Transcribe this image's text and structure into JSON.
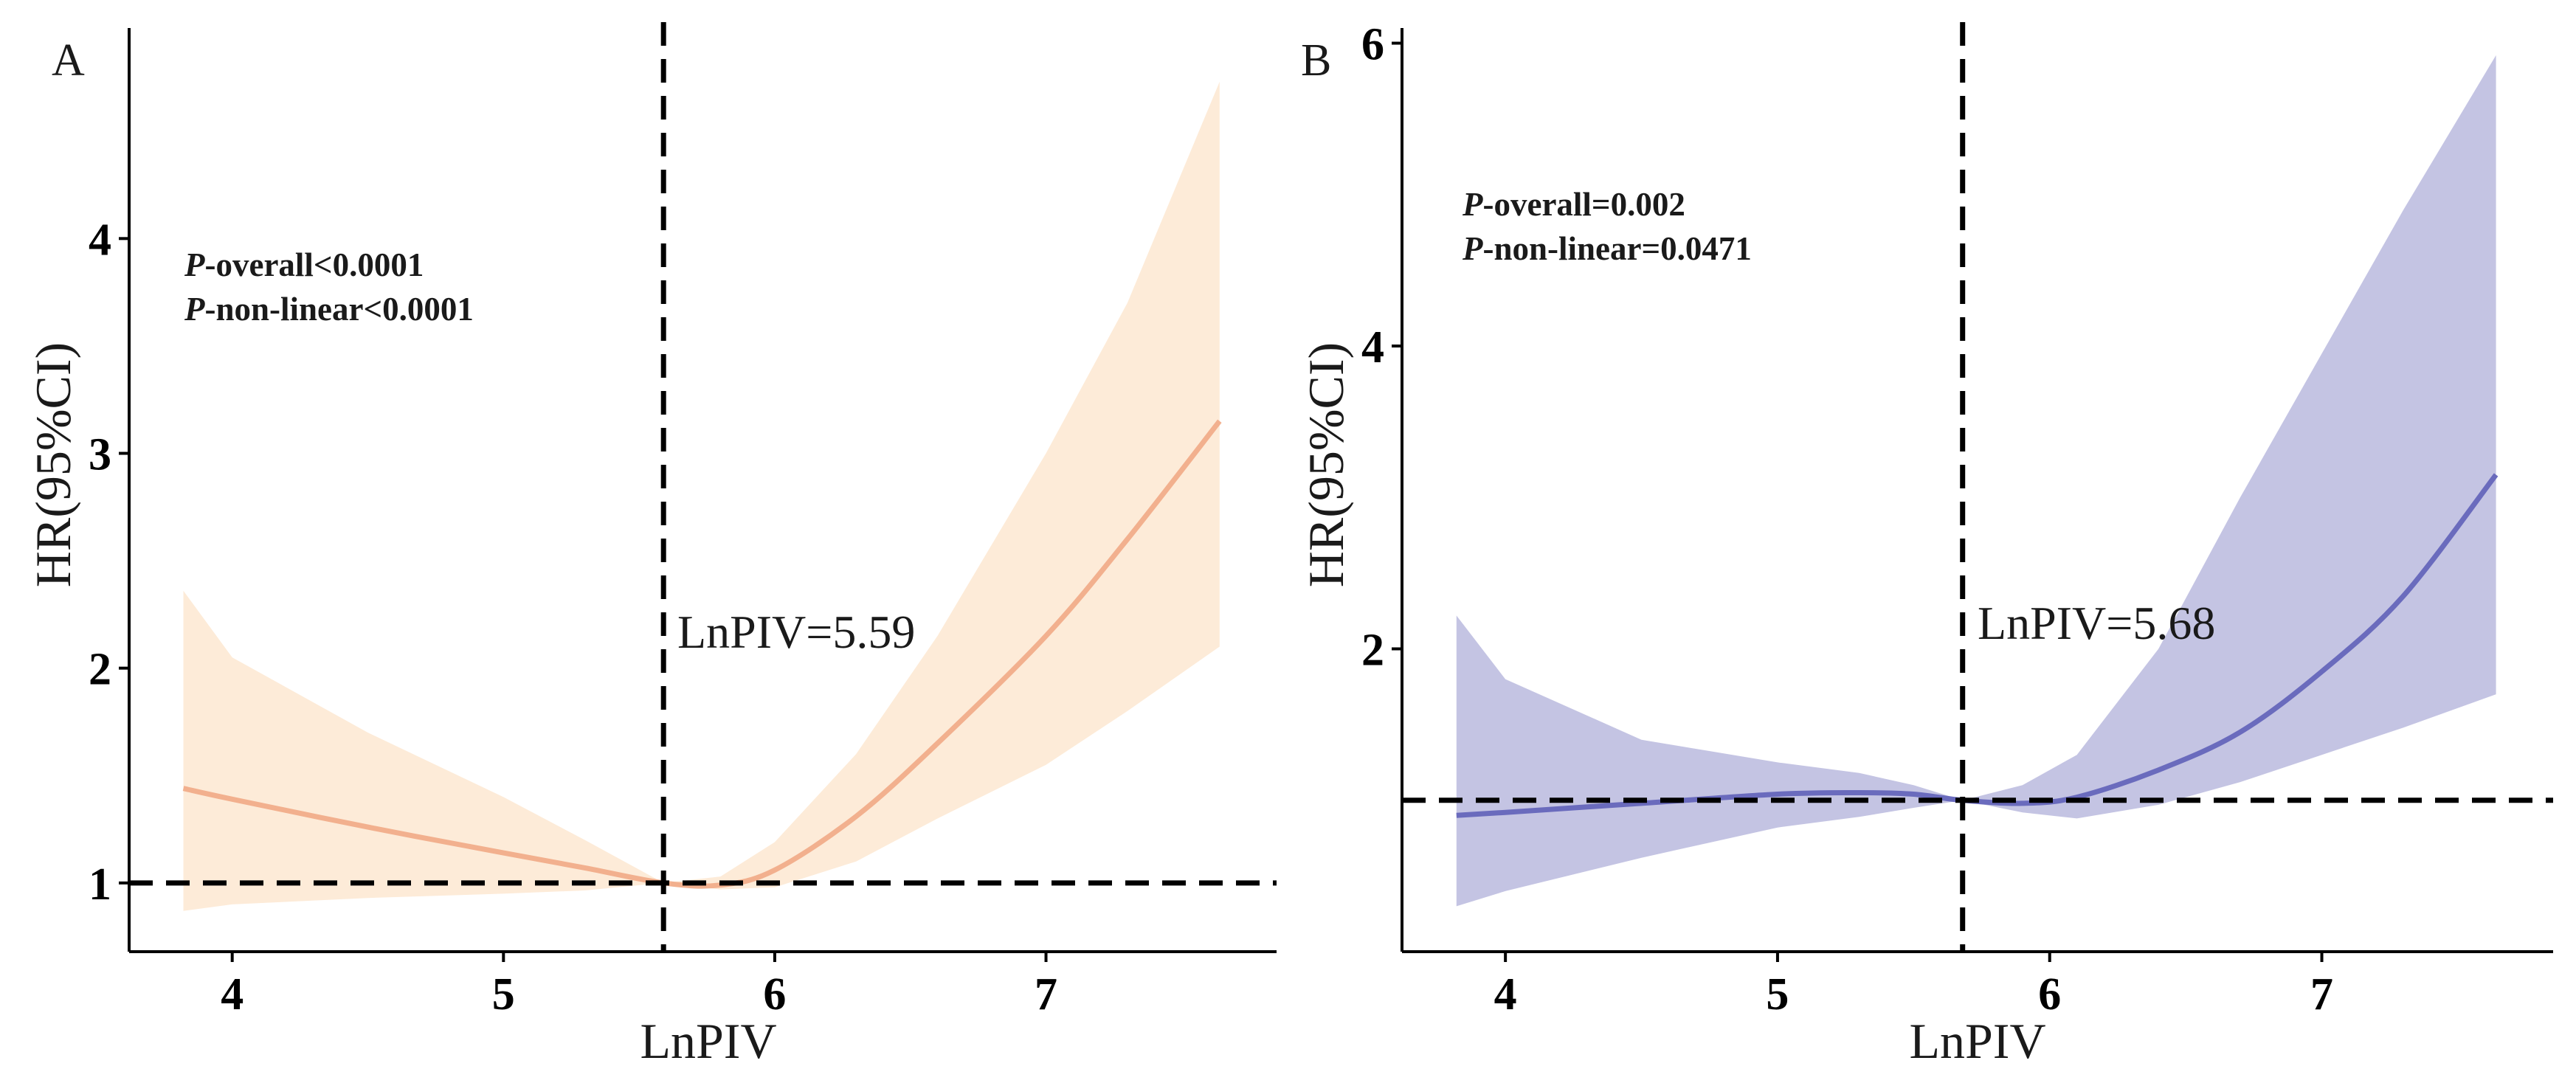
{
  "chart_data": [
    {
      "type": "line",
      "panel_label": "A",
      "xlabel": "LnPIV",
      "ylabel": "HR(95%CI)",
      "xlim": [
        3.62,
        7.85
      ],
      "ylim": [
        0.68,
        4.98
      ],
      "xticks": [
        4,
        5,
        6,
        7
      ],
      "yticks": [
        1,
        2,
        3,
        4
      ],
      "grid": false,
      "stats": [
        {
          "italic": "P",
          "text": "-overall<0.0001"
        },
        {
          "italic": "P",
          "text": "-non-linear<0.0001"
        }
      ],
      "ref_x": 5.59,
      "ref_y": 1,
      "ref_label": "LnPIV=5.59",
      "line_color": "#f2b08e",
      "band_color": "#fdebd8",
      "series": [
        {
          "name": "HR",
          "x": [
            3.82,
            4.0,
            4.5,
            5.0,
            5.3,
            5.59,
            5.8,
            6.0,
            6.3,
            6.6,
            7.0,
            7.3,
            7.64
          ],
          "y": [
            1.44,
            1.39,
            1.26,
            1.14,
            1.07,
            1.0,
            0.99,
            1.06,
            1.31,
            1.65,
            2.15,
            2.6,
            3.15
          ],
          "lower": [
            0.87,
            0.9,
            0.93,
            0.95,
            0.965,
            1.0,
            0.97,
            0.98,
            1.1,
            1.3,
            1.55,
            1.8,
            2.1
          ],
          "upper": [
            2.36,
            2.05,
            1.7,
            1.4,
            1.2,
            1.0,
            1.03,
            1.19,
            1.6,
            2.15,
            3.0,
            3.7,
            4.73
          ]
        }
      ]
    },
    {
      "type": "line",
      "panel_label": "B",
      "xlabel": "LnPIV",
      "ylabel": "HR(95%CI)",
      "xlim": [
        3.62,
        7.85
      ],
      "ylim": [
        0.0,
        6.1
      ],
      "xticks": [
        4,
        5,
        6,
        7
      ],
      "yticks": [
        2,
        4,
        6
      ],
      "grid": false,
      "stats": [
        {
          "italic": "P",
          "text": "-overall=0.002"
        },
        {
          "italic": "P",
          "text": "-non-linear=0.0471"
        }
      ],
      "ref_x": 5.68,
      "ref_y": 1,
      "ref_label": "LnPIV=5.68",
      "line_color": "#6a6bbd",
      "band_color": "#c4c4e3",
      "series": [
        {
          "name": "HR",
          "x": [
            3.82,
            4.0,
            4.5,
            5.0,
            5.3,
            5.5,
            5.68,
            5.9,
            6.1,
            6.4,
            6.7,
            7.0,
            7.3,
            7.64
          ],
          "y": [
            0.9,
            0.92,
            0.98,
            1.04,
            1.05,
            1.04,
            1.0,
            0.98,
            1.02,
            1.2,
            1.45,
            1.85,
            2.35,
            3.15
          ],
          "lower": [
            0.3,
            0.4,
            0.62,
            0.82,
            0.89,
            0.95,
            1.0,
            0.92,
            0.88,
            0.97,
            1.12,
            1.3,
            1.48,
            1.7
          ],
          "upper": [
            2.22,
            1.8,
            1.4,
            1.25,
            1.18,
            1.1,
            1.0,
            1.1,
            1.3,
            2.0,
            3.0,
            3.95,
            4.9,
            5.92
          ]
        }
      ]
    }
  ]
}
